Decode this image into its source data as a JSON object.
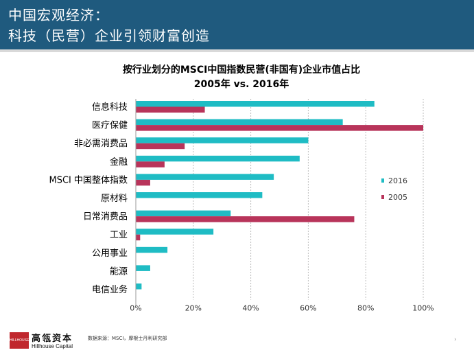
{
  "header": {
    "line1": "中国宏观经济：",
    "line2": "科技（民营）企业引领财富创造"
  },
  "chart_data": {
    "type": "bar",
    "orientation": "horizontal",
    "title": "按行业划分的MSCI中国指数民营(非国有)企业市值占比",
    "subtitle": "2005年 vs. 2016年",
    "categories": [
      "信息科技",
      "医疗保健",
      "非必需消费品",
      "金融",
      "MSCI 中国整体指数",
      "原材料",
      "日常消费品",
      "工业",
      "公用事业",
      "能源",
      "电信业务"
    ],
    "series": [
      {
        "name": "2016",
        "color": "#1fbcc4",
        "values": [
          83,
          72,
          60,
          57,
          48,
          44,
          33,
          27,
          11,
          5,
          2
        ]
      },
      {
        "name": "2005",
        "color": "#b8345a",
        "values": [
          24,
          100,
          17,
          10,
          5,
          0,
          76,
          1.5,
          0,
          0,
          0
        ]
      }
    ],
    "xlim": [
      0,
      100
    ],
    "xticks": [
      0,
      20,
      40,
      60,
      80,
      100
    ],
    "xtick_labels": [
      "0%",
      "20%",
      "40%",
      "60%",
      "80%",
      "100%"
    ],
    "grid": "vertical dashed",
    "legend": "right"
  },
  "footer": {
    "logo_mark_text": "HILLHOUSE",
    "logo_cn": "高瓴资本",
    "logo_en": "Hillhouse Capital",
    "source": "数据来源：MSCI，摩根士丹利研究部",
    "page_marker": "›"
  }
}
